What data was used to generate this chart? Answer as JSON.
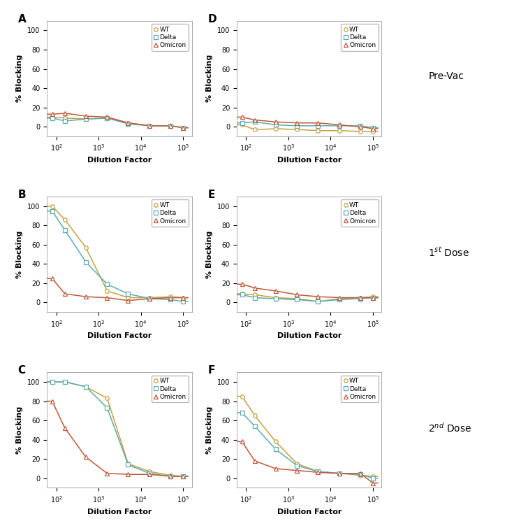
{
  "x_data": [
    80,
    160,
    500,
    1600,
    5000,
    16000,
    50000,
    100000
  ],
  "panels": {
    "A": {
      "WT": [
        10,
        9,
        8,
        9,
        4,
        1,
        1,
        -1
      ],
      "Delta": [
        9,
        6,
        8,
        9,
        3,
        1,
        1,
        -1
      ],
      "Omicron": [
        13,
        14,
        11,
        10,
        4,
        1,
        1,
        -1
      ]
    },
    "D": {
      "WT": [
        2,
        -3,
        -2,
        -3,
        -4,
        -4,
        -5,
        -5
      ],
      "Delta": [
        4,
        5,
        2,
        1,
        1,
        1,
        1,
        -1
      ],
      "Omicron": [
        10,
        7,
        5,
        4,
        4,
        2,
        0,
        -2
      ]
    },
    "B": {
      "WT": [
        100,
        86,
        57,
        12,
        5,
        5,
        6,
        5
      ],
      "Delta": [
        95,
        75,
        42,
        19,
        9,
        4,
        3,
        1
      ],
      "Omicron": [
        25,
        9,
        6,
        5,
        2,
        4,
        5,
        5
      ]
    },
    "E": {
      "WT": [
        9,
        8,
        5,
        4,
        1,
        4,
        5,
        6
      ],
      "Delta": [
        8,
        5,
        4,
        3,
        1,
        3,
        4,
        5
      ],
      "Omicron": [
        19,
        15,
        12,
        8,
        6,
        5,
        5,
        5
      ]
    },
    "C": {
      "WT": [
        100,
        100,
        95,
        83,
        15,
        7,
        3,
        2
      ],
      "Delta": [
        100,
        100,
        95,
        73,
        14,
        5,
        2,
        2
      ],
      "Omicron": [
        80,
        52,
        22,
        5,
        4,
        4,
        2,
        2
      ]
    },
    "F": {
      "WT": [
        85,
        65,
        38,
        15,
        7,
        5,
        3,
        2
      ],
      "Delta": [
        68,
        54,
        30,
        13,
        7,
        5,
        4,
        0
      ],
      "Omicron": [
        38,
        18,
        10,
        8,
        6,
        5,
        5,
        -5
      ]
    }
  },
  "colors": {
    "WT": "#c8a040",
    "Delta": "#5aacb0",
    "Omicron": "#c05838"
  },
  "markers": {
    "WT": "o",
    "Delta": "s",
    "Omicron": "^"
  },
  "row_labels_formatted": [
    "Pre-Vac",
    "1$^{st}$ Dose",
    "2$^{nd}$ Dose"
  ],
  "panel_labels": [
    [
      "A",
      "D"
    ],
    [
      "B",
      "E"
    ],
    [
      "C",
      "F"
    ]
  ],
  "ylim": [
    -10,
    110
  ],
  "yticks": [
    0,
    20,
    40,
    60,
    80,
    100
  ],
  "ylabel": "% Blocking",
  "xlabel": "Dilution Factor",
  "bg_color": "#ffffff",
  "x_fit_min": 60,
  "x_fit_max": 130000
}
